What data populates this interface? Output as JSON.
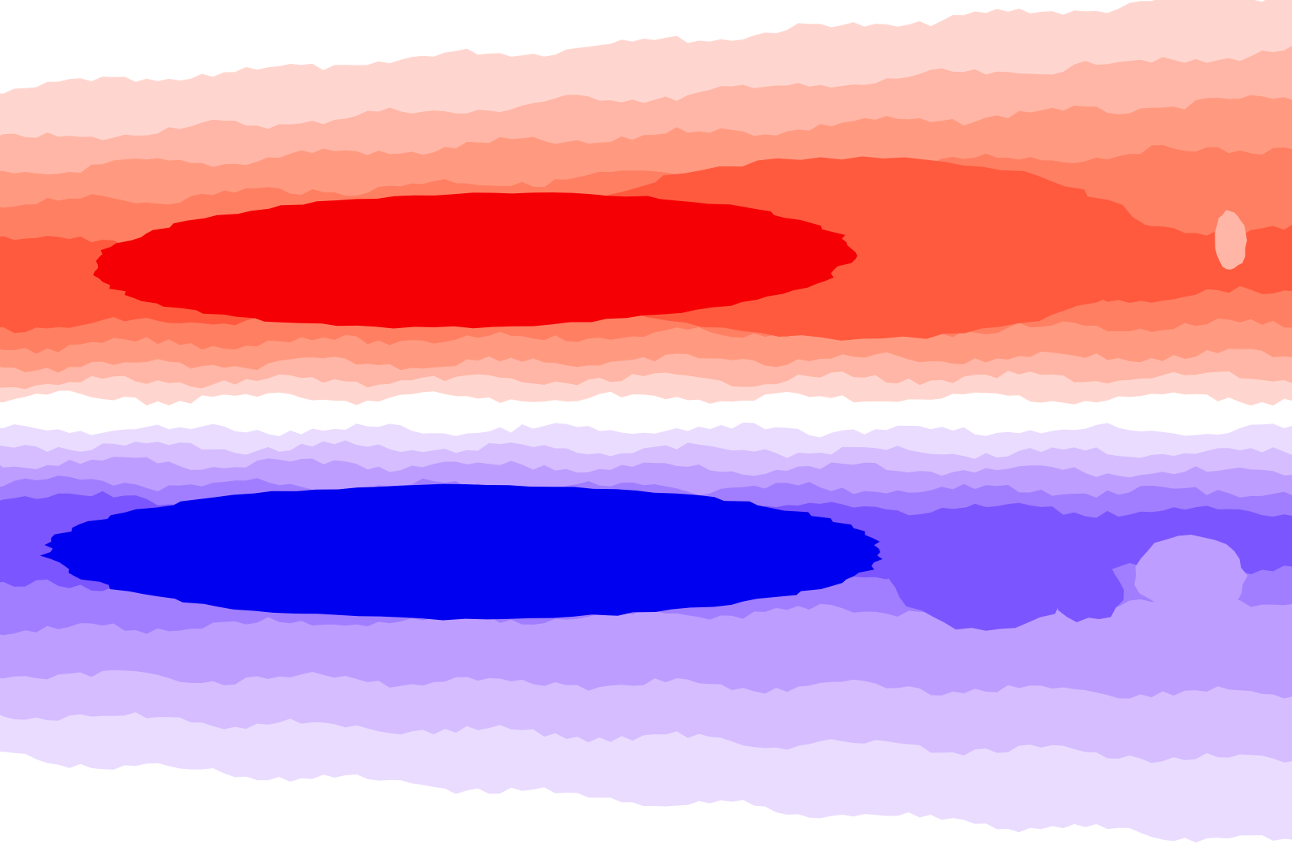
{
  "chart_data": {
    "type": "contourf",
    "title": "",
    "xlabel": "",
    "ylabel": "",
    "axes_visible": false,
    "grid": false,
    "legend": "none",
    "colormap": "bwr",
    "levels": [
      -0.9,
      -0.7,
      -0.5,
      -0.3,
      -0.1,
      0.1,
      0.3,
      0.5,
      0.7,
      0.9
    ],
    "level_colors": [
      "#0000f0",
      "#7b55ff",
      "#a07eff",
      "#bd9dff",
      "#d5bdff",
      "#eadcff",
      "#ffffff",
      "#ffd6cf",
      "#ffb6a6",
      "#ff9a81",
      "#ff7f62",
      "#ff5a3e",
      "#f50005"
    ],
    "features": [
      {
        "name": "positive-core",
        "sign": "+",
        "peak_level": 0.9
      },
      {
        "name": "negative-core",
        "sign": "-",
        "peak_level": -0.9
      },
      {
        "name": "positive-right-pocket",
        "sign": "+",
        "peak_level": 0.3
      },
      {
        "name": "negative-right-pocket",
        "sign": "-",
        "peak_level": -0.7
      }
    ]
  }
}
